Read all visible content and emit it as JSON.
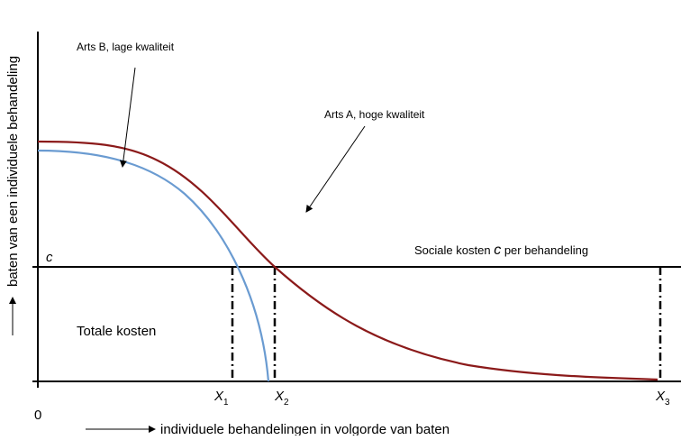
{
  "curve_labels": {
    "doctor_b": "Arts B, lage kwaliteit",
    "doctor_a": "Arts A, hoge kwaliteit"
  },
  "cost_line": {
    "symbol": "c",
    "label_before": "Sociale kosten",
    "label_symbol": "c",
    "label_after": "per behandeling"
  },
  "area_label": "Totale kosten",
  "x_points": [
    {
      "letter": "X",
      "sub": "1"
    },
    {
      "letter": "X",
      "sub": "2"
    },
    {
      "letter": "X",
      "sub": "3"
    }
  ],
  "origin": "0",
  "x_axis_label": "individuele behandelingen in volgorde van baten",
  "y_axis_label": "baten van een individuele behandeling"
}
